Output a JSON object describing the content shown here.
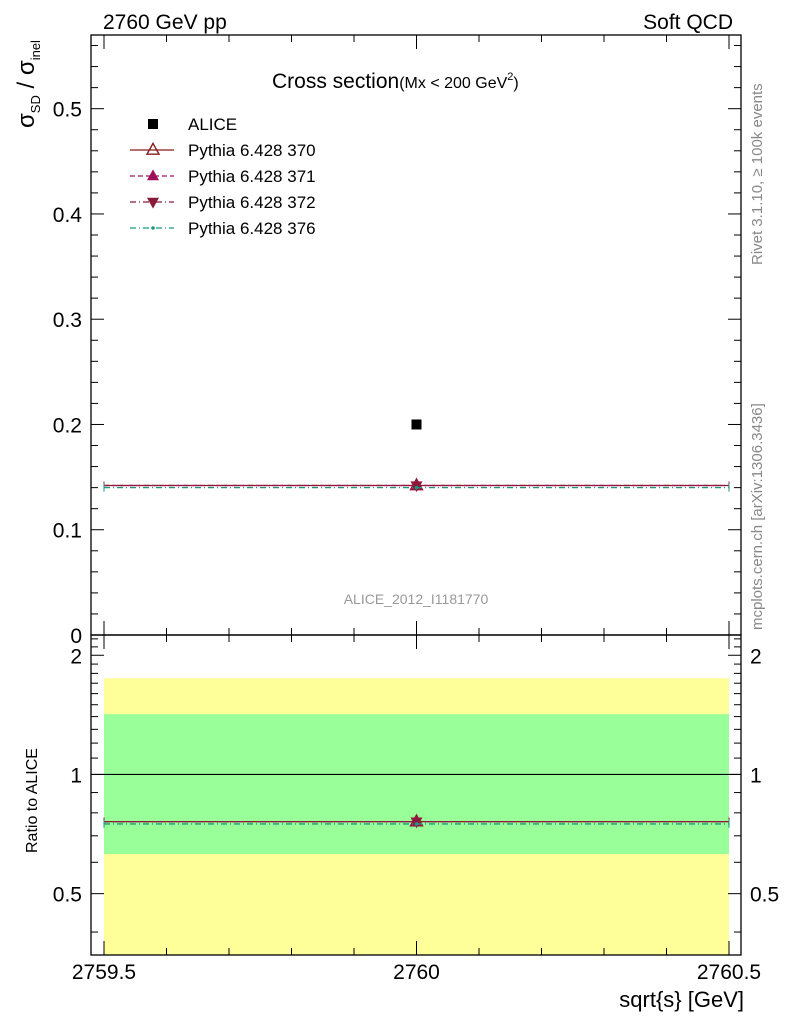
{
  "header": {
    "left": "2760 GeV pp",
    "right": "Soft QCD"
  },
  "side_text": {
    "rivet": "Rivet 3.1.10, ≥ 100k events",
    "mcplots": "mcplots.cern.ch [arXiv:1306.3436]"
  },
  "watermark": "ALICE_2012_I1181770",
  "chart_data": [
    {
      "type": "scatter",
      "title": "Cross section",
      "title_note": "(Mx < 200 GeV",
      "title_note_sup": "2",
      "title_note_close": ")",
      "ylabel": {
        "sigma": "σ",
        "sd": "SD",
        "slash": " / ",
        "inel": "inel"
      },
      "ylim": [
        0,
        0.57
      ],
      "yticks": [
        0,
        0.1,
        0.2,
        0.3,
        0.4,
        0.5
      ],
      "ytick_labels": [
        "0",
        "0.1",
        "0.2",
        "0.3",
        "0.4",
        "0.5"
      ],
      "xlim": [
        2759.5,
        2760.5
      ],
      "legend_position": "top-left",
      "series": [
        {
          "name": "ALICE",
          "x": [
            2760
          ],
          "y": [
            0.2
          ],
          "color": "#000000",
          "marker": "square",
          "line": "none"
        },
        {
          "name": "Pythia 6.428 370",
          "x": [
            2759.5,
            2760.5
          ],
          "y": [
            0.142,
            0.142
          ],
          "point": [
            2760,
            0.142
          ],
          "color": "#8b1a1a",
          "marker": "triangle-up-open",
          "line": "solid"
        },
        {
          "name": "Pythia 6.428 371",
          "x": [
            2759.5,
            2760.5
          ],
          "y": [
            0.142,
            0.142
          ],
          "point": [
            2760,
            0.142
          ],
          "color": "#a0105a",
          "marker": "triangle-up",
          "line": "dashed"
        },
        {
          "name": "Pythia 6.428 372",
          "x": [
            2759.5,
            2760.5
          ],
          "y": [
            0.142,
            0.142
          ],
          "point": [
            2760,
            0.142
          ],
          "color": "#8b1a3a",
          "marker": "triangle-down",
          "line": "dashdot"
        },
        {
          "name": "Pythia 6.428 376",
          "x": [
            2759.5,
            2760.5
          ],
          "y": [
            0.14,
            0.14
          ],
          "point": [
            2760,
            0.14
          ],
          "color": "#1a9a80",
          "marker": "dot",
          "line": "dashdot"
        }
      ]
    },
    {
      "type": "scatter",
      "ylabel": "Ratio to ALICE",
      "xlabel": "sqrt{s} [GeV]",
      "ylim": [
        0.35,
        2.25
      ],
      "yticks": [
        0.5,
        1,
        2
      ],
      "ytick_labels": [
        "0.5",
        "1",
        "2"
      ],
      "xlim": [
        2759.5,
        2760.5
      ],
      "xticks": [
        2759.5,
        2760,
        2760.5
      ],
      "xtick_labels": [
        "2759.5",
        "2760",
        "2760.5"
      ],
      "bands": [
        {
          "name": "total uncertainty",
          "low": 0.35,
          "high": 1.75,
          "color": "#ffff99"
        },
        {
          "name": "stat uncertainty",
          "low": 0.63,
          "high": 1.42,
          "color": "#99ff99"
        }
      ],
      "reference": 1,
      "series": [
        {
          "name": "Pythia 6.428 370",
          "x": [
            2759.5,
            2760.5
          ],
          "y": [
            0.76,
            0.76
          ],
          "point": [
            2760,
            0.76
          ],
          "color": "#8b1a1a",
          "marker": "triangle-up-open",
          "line": "solid"
        },
        {
          "name": "Pythia 6.428 371",
          "x": [
            2759.5,
            2760.5
          ],
          "y": [
            0.76,
            0.76
          ],
          "point": [
            2760,
            0.76
          ],
          "color": "#a0105a",
          "marker": "triangle-up",
          "line": "dashed"
        },
        {
          "name": "Pythia 6.428 372",
          "x": [
            2759.5,
            2760.5
          ],
          "y": [
            0.76,
            0.76
          ],
          "point": [
            2760,
            0.76
          ],
          "color": "#8b1a3a",
          "marker": "triangle-down",
          "line": "dashdot"
        },
        {
          "name": "Pythia 6.428 376",
          "x": [
            2759.5,
            2760.5
          ],
          "y": [
            0.75,
            0.75
          ],
          "point": [
            2760,
            0.75
          ],
          "color": "#1a9a80",
          "marker": "dot",
          "line": "dashdot"
        }
      ]
    }
  ]
}
